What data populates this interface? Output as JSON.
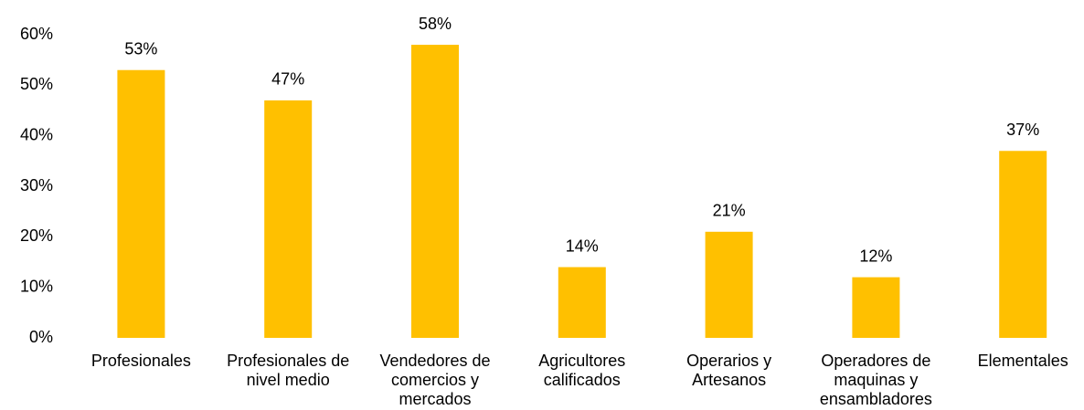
{
  "chart_data": {
    "type": "bar",
    "categories": [
      "Profesionales",
      "Profesionales de nivel medio",
      "Vendedores de comercios y mercados",
      "Agricultores calificados",
      "Operarios y Artesanos",
      "Operadores de maquinas y ensambladores",
      "Elementales"
    ],
    "values": [
      53,
      47,
      58,
      14,
      21,
      12,
      37
    ],
    "value_labels": [
      "53%",
      "47%",
      "58%",
      "14%",
      "21%",
      "12%",
      "37%"
    ],
    "color": "#ffc000",
    "ylim": [
      0,
      60
    ],
    "yticks": [
      {
        "value": 0,
        "label": "0%"
      },
      {
        "value": 10,
        "label": "10%"
      },
      {
        "value": 20,
        "label": "20%"
      },
      {
        "value": 30,
        "label": "30%"
      },
      {
        "value": 40,
        "label": "40%"
      },
      {
        "value": 50,
        "label": "50%"
      },
      {
        "value": 60,
        "label": "60%"
      }
    ],
    "grid": false
  }
}
